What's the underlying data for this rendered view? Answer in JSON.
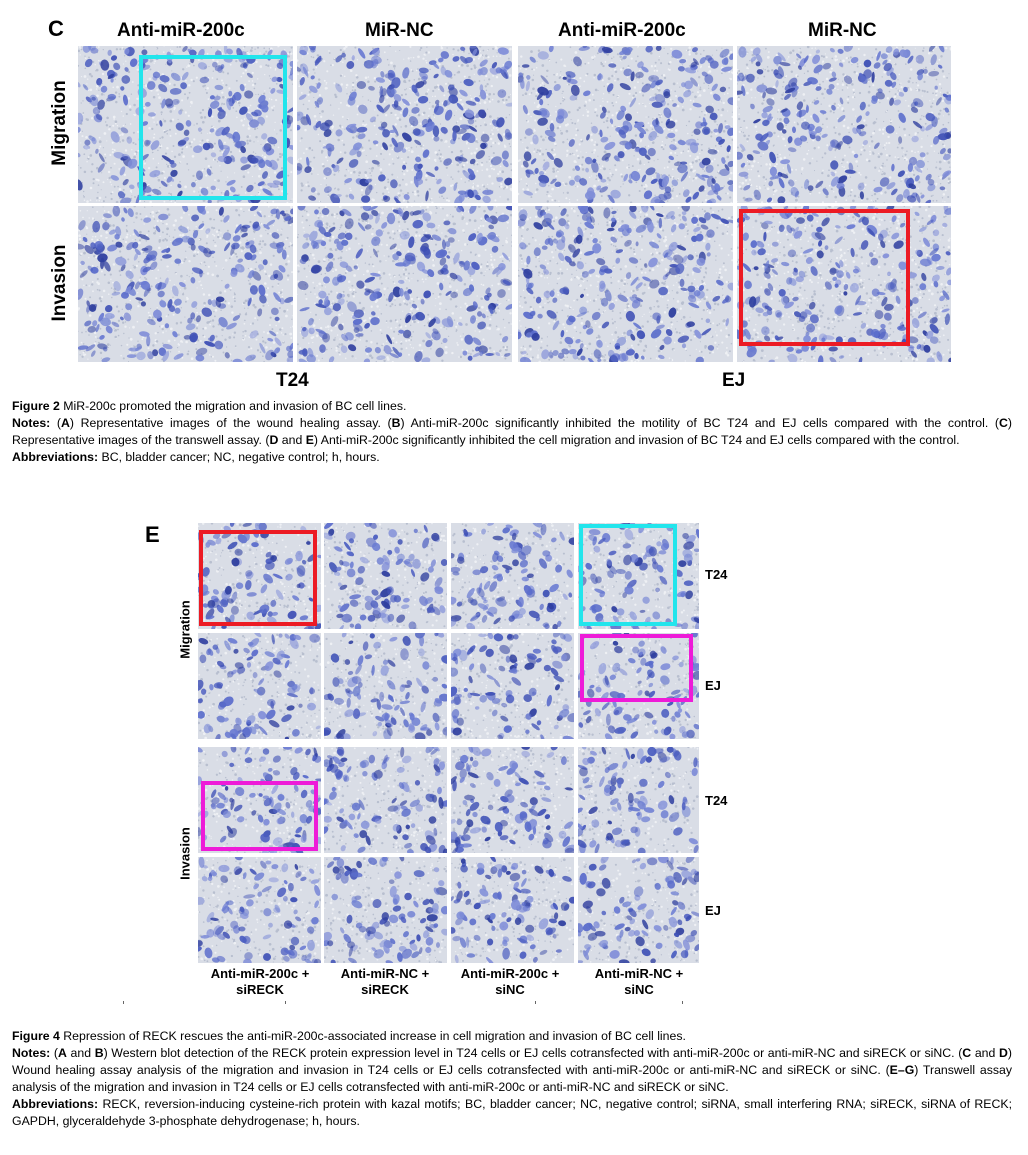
{
  "figure2": {
    "panel_letter": "C",
    "col_headers": [
      "Anti-miR-200c",
      "MiR-NC",
      "Anti-miR-200c",
      "MiR-NC"
    ],
    "row_labels": [
      "Migration",
      "Invasion"
    ],
    "group_labels": [
      "T24",
      "EJ"
    ],
    "box_colors": {
      "cyan": "#22e5ec",
      "red": "#ec1b24"
    },
    "caption": {
      "title_bold": "Figure 2",
      "title_text": "MiR-200c promoted the migration and invasion of BC cell lines.",
      "notes_bold": "Notes:",
      "notes_parts": [
        " (",
        "A",
        ") Representative images of the wound healing assay. (",
        "B",
        ") Anti-miR-200c significantly inhibited the motility of BC T24 and EJ cells compared with the control. (",
        "C",
        ") Representative images of the transwell assay. (",
        "D",
        " and ",
        "E",
        ") Anti-miR-200c significantly inhibited the cell migration and invasion of BC T24 and EJ cells compared with the control."
      ],
      "abbrev_bold": "Abbreviations:",
      "abbrev_text": " BC, bladder cancer; NC, negative control; h, hours."
    }
  },
  "figure4": {
    "panel_letter": "E",
    "row_labels": [
      "Migration",
      "Invasion"
    ],
    "side_labels": [
      "T24",
      "EJ",
      "T24",
      "EJ"
    ],
    "col_labels": [
      [
        "Anti-miR-200c +",
        "siRECK"
      ],
      [
        "Anti-miR-NC +",
        "siRECK"
      ],
      [
        "Anti-miR-200c +",
        "siNC"
      ],
      [
        "Anti-miR-NC +",
        "siNC"
      ]
    ],
    "box_colors": {
      "red": "#ec1b24",
      "cyan": "#22e5ec",
      "magenta": "#ee1bd8"
    },
    "caption": {
      "title_bold": "Figure 4",
      "title_text": " Repression of RECK rescues the anti-miR-200c-associated increase in cell migration and invasion of BC cell lines.",
      "notes_bold": "Notes:",
      "notes_parts": [
        " (",
        "A",
        " and ",
        "B",
        ") Western blot detection of the RECK protein expression level in T24 cells or EJ cells cotransfected with anti-miR-200c or anti-miR-NC and siRECK or siNC. (",
        "C",
        " and ",
        "D",
        ") Wound healing assay analysis of the migration and invasion in T24 cells or EJ cells cotransfected with anti-miR-200c or anti-miR-NC and siRECK or siNC. (",
        "E–G",
        ") Transwell assay analysis of the migration and invasion in T24 cells or EJ cells cotransfected with anti-miR-200c or anti-miR-NC and siRECK or siNC."
      ],
      "abbrev_bold": "Abbreviations:",
      "abbrev_text": " RECK, reversion-inducing cysteine-rich protein with kazal motifs; BC, bladder cancer; NC, negative control; siRNA, small interfering RNA; siRECK, siRNA of RECK; GAPDH, glyceraldehyde 3-phosphate dehydrogenase; h, hours."
    }
  }
}
